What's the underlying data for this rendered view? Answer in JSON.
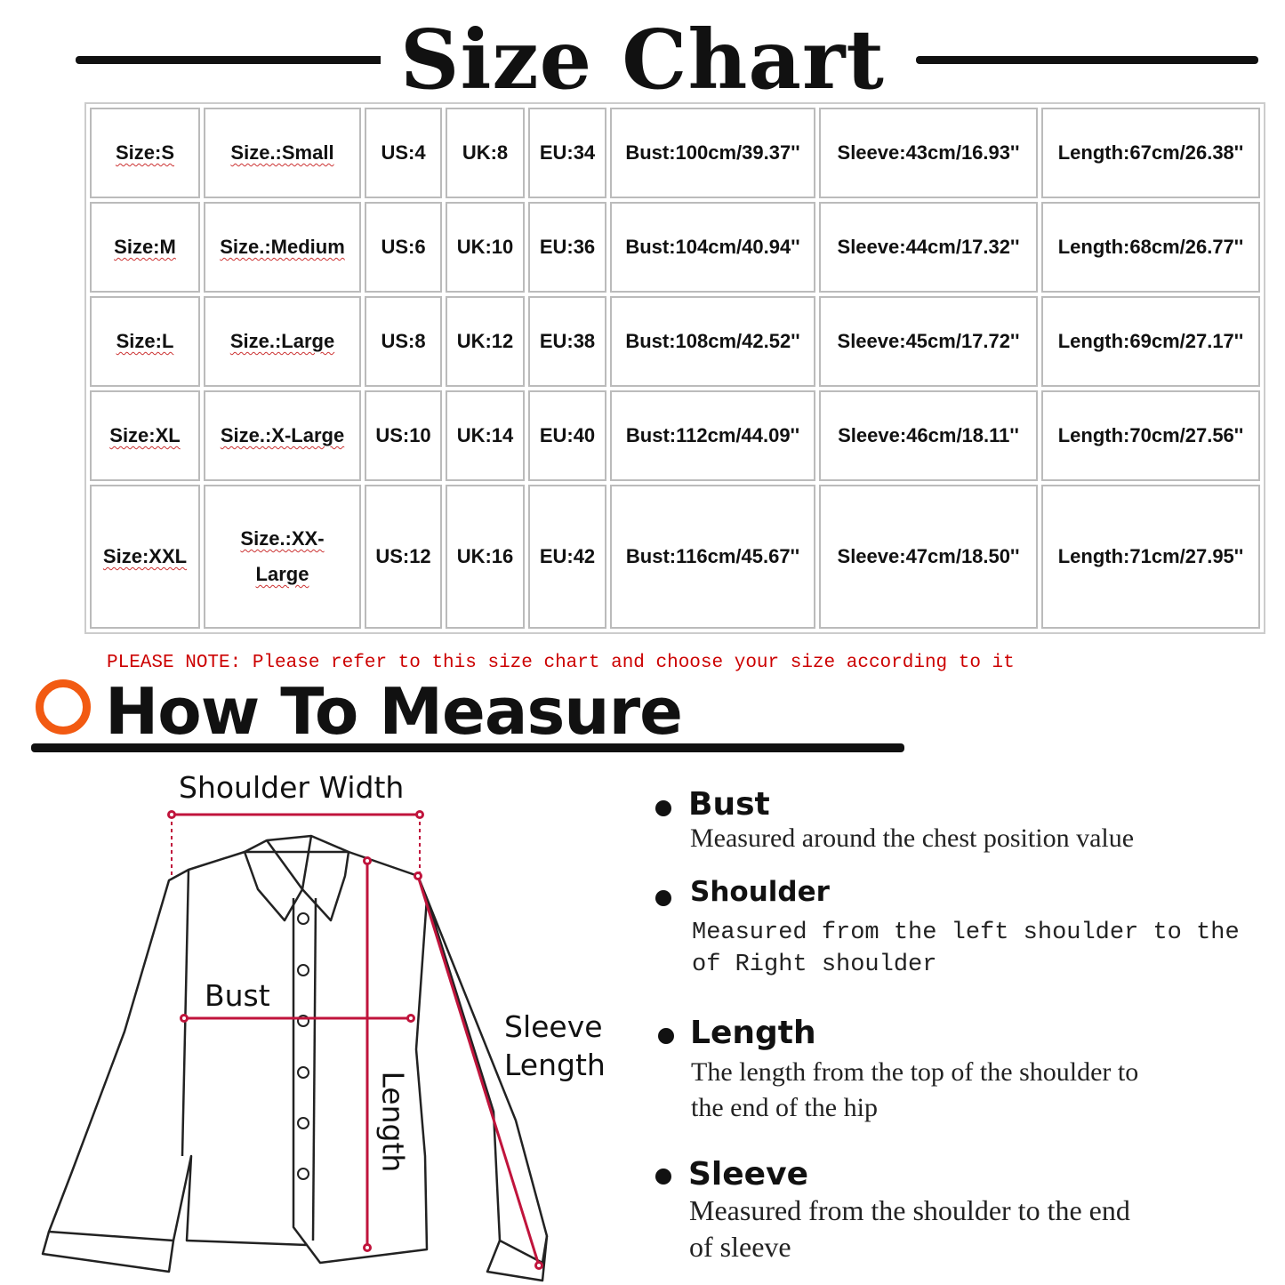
{
  "title": "Size Chart",
  "size_table": {
    "rows": [
      [
        "Size:S",
        "Size.:Small",
        "US:4",
        "UK:8",
        "EU:34",
        "Bust:100cm/39.37''",
        "Sleeve:43cm/16.93''",
        "Length:67cm/26.38''"
      ],
      [
        "Size:M",
        "Size.:Medium",
        "US:6",
        "UK:10",
        "EU:36",
        "Bust:104cm/40.94''",
        "Sleeve:44cm/17.32''",
        "Length:68cm/26.77''"
      ],
      [
        "Size:L",
        "Size.:Large",
        "US:8",
        "UK:12",
        "EU:38",
        "Bust:108cm/42.52''",
        "Sleeve:45cm/17.72''",
        "Length:69cm/27.17''"
      ],
      [
        "Size:XL",
        "Size.:X-Large",
        "US:10",
        "UK:14",
        "EU:40",
        "Bust:112cm/44.09''",
        "Sleeve:46cm/18.11''",
        "Length:70cm/27.56''"
      ],
      [
        "Size:XXL",
        "Size.:XX-Large",
        "US:12",
        "UK:16",
        "EU:42",
        "Bust:116cm/45.67''",
        "Sleeve:47cm/18.50''",
        "Length:71cm/27.95''"
      ]
    ]
  },
  "note": "PLEASE NOTE: Please refer to this size chart and choose your size according to it",
  "how_to_measure": {
    "heading": "How To Measure",
    "accent_color": "#f25a12",
    "line_color": "#c0143c",
    "diagram_labels": {
      "shoulder_width": "Shoulder Width",
      "bust": "Bust",
      "sleeve_length_1": "Sleeve",
      "sleeve_length_2": "Length",
      "length": "Length"
    },
    "items": [
      {
        "title": "Bust",
        "lines": [
          "Measured around the chest position value"
        ]
      },
      {
        "title": "Shoulder",
        "lines": [
          "Measured from the left shoulder to the",
          "of Right shoulder"
        ]
      },
      {
        "title": "Length",
        "lines": [
          "The length from the top of the shoulder to",
          "the end of the hip"
        ]
      },
      {
        "title": "Sleeve",
        "lines": [
          "Measured from the shoulder to the end",
          "of sleeve"
        ]
      }
    ]
  }
}
